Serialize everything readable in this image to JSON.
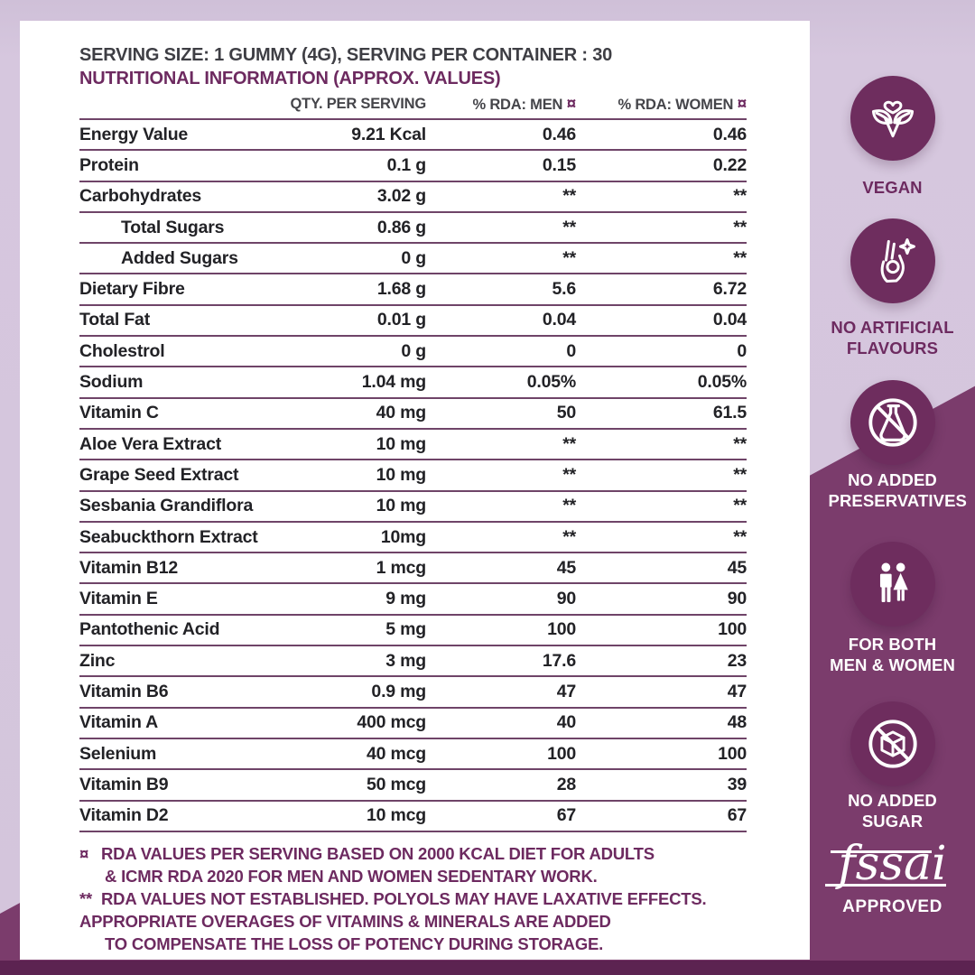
{
  "colors": {
    "lavender_bg": "#d4c5dc",
    "diagonal_purple": "#7b3c6c",
    "badge_circle": "#6e2d5e",
    "bottom_bar": "#5c2351",
    "accent_purple": "#6d2a60",
    "separator": "#6f4468",
    "text_dark": "#222226"
  },
  "card": {
    "serving_line": "SERVING SIZE: 1 GUMMY (4G), SERVING PER CONTAINER : 30",
    "title": "NUTRITIONAL INFORMATION (APPROX. VALUES)"
  },
  "table": {
    "col_qty": "QTY. PER SERVING",
    "col_men": "% RDA: MEN",
    "col_women": "% RDA: WOMEN",
    "rda_marker": "¤",
    "rows": [
      {
        "name": "Energy Value",
        "qty": "9.21 Kcal",
        "men": "0.46",
        "women": "0.46",
        "indent": false
      },
      {
        "name": "Protein",
        "qty": "0.1 g",
        "men": "0.15",
        "women": "0.22",
        "indent": false
      },
      {
        "name": "Carbohydrates",
        "qty": "3.02 g",
        "men": "**",
        "women": "**",
        "indent": false
      },
      {
        "name": "Total Sugars",
        "qty": "0.86 g",
        "men": "**",
        "women": "**",
        "indent": true
      },
      {
        "name": "Added Sugars",
        "qty": "0 g",
        "men": "**",
        "women": "**",
        "indent": true
      },
      {
        "name": "Dietary Fibre",
        "qty": "1.68 g",
        "men": "5.6",
        "women": "6.72",
        "indent": false
      },
      {
        "name": "Total Fat",
        "qty": "0.01 g",
        "men": "0.04",
        "women": "0.04",
        "indent": false
      },
      {
        "name": "Cholestrol",
        "qty": "0 g",
        "men": "0",
        "women": "0",
        "indent": false
      },
      {
        "name": "Sodium",
        "qty": "1.04 mg",
        "men": "0.05%",
        "women": "0.05%",
        "indent": false
      },
      {
        "name": "Vitamin C",
        "qty": "40 mg",
        "men": "50",
        "women": "61.5",
        "indent": false
      },
      {
        "name": "Aloe Vera Extract",
        "qty": "10 mg",
        "men": "**",
        "women": "**",
        "indent": false
      },
      {
        "name": "Grape Seed Extract",
        "qty": "10 mg",
        "men": "**",
        "women": "**",
        "indent": false
      },
      {
        "name": "Sesbania Grandiflora",
        "qty": "10 mg",
        "men": "**",
        "women": "**",
        "indent": false
      },
      {
        "name": "Seabuckthorn Extract",
        "qty": "10mg",
        "men": "**",
        "women": "**",
        "indent": false
      },
      {
        "name": "Vitamin B12",
        "qty": "1 mcg",
        "men": "45",
        "women": "45",
        "indent": false
      },
      {
        "name": "Vitamin E",
        "qty": "9 mg",
        "men": "90",
        "women": "90",
        "indent": false
      },
      {
        "name": "Pantothenic Acid",
        "qty": "5 mg",
        "men": "100",
        "women": "100",
        "indent": false
      },
      {
        "name": "Zinc",
        "qty": "3 mg",
        "men": "17.6",
        "women": "23",
        "indent": false
      },
      {
        "name": "Vitamin B6",
        "qty": "0.9 mg",
        "men": "47",
        "women": "47",
        "indent": false
      },
      {
        "name": "Vitamin A",
        "qty": "400 mcg",
        "men": "40",
        "women": "48",
        "indent": false
      },
      {
        "name": "Selenium",
        "qty": "40 mcg",
        "men": "100",
        "women": "100",
        "indent": false
      },
      {
        "name": "Vitamin B9",
        "qty": "50 mcg",
        "men": "28",
        "women": "39",
        "indent": false
      },
      {
        "name": "Vitamin D2",
        "qty": "10 mcg",
        "men": "67",
        "women": "67",
        "indent": false
      }
    ]
  },
  "notes": [
    {
      "marker": "¤",
      "lines": [
        "RDA VALUES PER SERVING BASED ON 2000 KCAL DIET FOR ADULTS",
        "& ICMR RDA 2020 FOR MEN AND WOMEN SEDENTARY WORK."
      ]
    },
    {
      "marker": "**",
      "lines": [
        "RDA VALUES NOT ESTABLISHED. POLYOLS MAY HAVE LAXATIVE EFFECTS."
      ]
    },
    {
      "marker": "",
      "lines": [
        "APPROPRIATE OVERAGES OF VITAMINS & MINERALS ARE ADDED",
        "TO COMPENSATE THE LOSS OF POTENCY DURING STORAGE."
      ]
    }
  ],
  "badges": [
    {
      "label": "VEGAN",
      "icon": "vegan-icon"
    },
    {
      "label": "NO ARTIFICIAL FLAVOURS",
      "icon": "ok-hand-icon"
    },
    {
      "label": "NO ADDED PRESERVATIVES",
      "icon": "no-preservatives-icon"
    },
    {
      "label": "FOR BOTH MEN & WOMEN",
      "icon": "men-women-icon"
    },
    {
      "label": "NO ADDED SUGAR",
      "icon": "no-sugar-icon"
    },
    {
      "label": "APPROVED",
      "icon": "fssai-logo",
      "logo_text": "fssai"
    }
  ]
}
